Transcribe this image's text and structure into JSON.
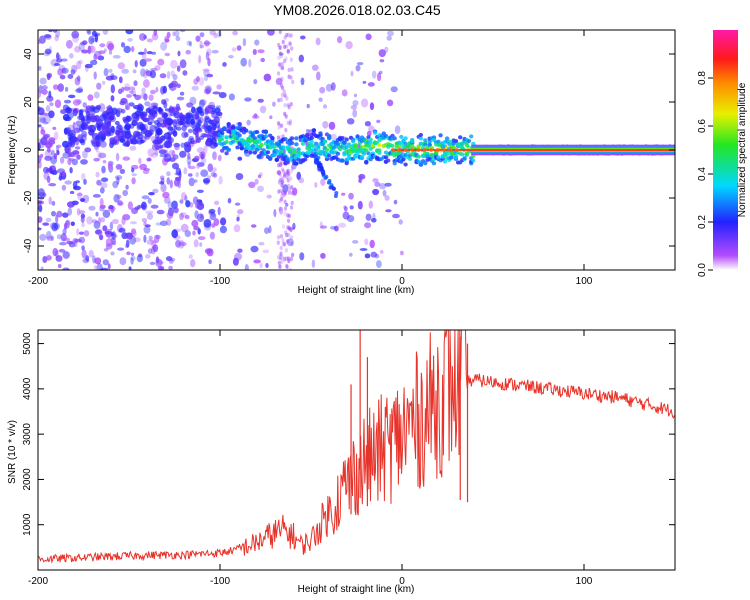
{
  "title": "YM08.2026.018.02.03.C45",
  "chart_data": [
    {
      "type": "heatmap",
      "title": "YM08.2026.018.02.03.C45",
      "xlabel": "Height of straight line (km)",
      "ylabel": "Frequency (Hz)",
      "xlim": [
        -200,
        150
      ],
      "ylim": [
        -50,
        50
      ],
      "xticks": [
        -200,
        -100,
        0,
        100
      ],
      "xtick_labels": [
        "-200",
        "-100",
        "0",
        "100"
      ],
      "yticks": [
        -40,
        -20,
        0,
        20,
        40
      ],
      "ytick_labels": [
        "-40",
        "-20",
        "0",
        "20",
        "40"
      ],
      "colorbar": {
        "label": "Normalized spectral amplitude",
        "range": [
          0,
          1
        ],
        "ticks": [
          0,
          0.2,
          0.4,
          0.6,
          0.8
        ],
        "tick_labels": [
          "0.0",
          "0.2",
          "0.4",
          "0.6",
          "0.8"
        ]
      },
      "ridge": {
        "x": [
          -100,
          -90,
          -80,
          -70,
          -60,
          -50,
          -40,
          -30,
          -20,
          -10,
          0,
          10,
          20,
          30,
          40,
          60,
          80,
          100,
          120,
          150
        ],
        "y": [
          4,
          5,
          3,
          1,
          -1,
          2,
          1,
          0,
          1,
          2,
          0,
          0,
          0,
          0,
          0,
          0,
          0,
          0,
          0,
          0
        ]
      }
    },
    {
      "type": "line",
      "xlabel": "Height of straight line (km)",
      "ylabel": "SNR (10 * v/v)",
      "xlim": [
        -200,
        150
      ],
      "ylim": [
        0,
        5300
      ],
      "xticks": [
        -200,
        -100,
        0,
        100
      ],
      "xtick_labels": [
        "-200",
        "-100",
        "0",
        "100"
      ],
      "yticks": [
        1000,
        2000,
        3000,
        4000,
        5000
      ],
      "ytick_labels": [
        "1000",
        "2000",
        "3000",
        "4000",
        "5000"
      ],
      "color": "#e8332a",
      "series": [
        {
          "name": "SNR",
          "x": [
            -200,
            -180,
            -160,
            -140,
            -120,
            -100,
            -90,
            -80,
            -75,
            -70,
            -65,
            -60,
            -55,
            -50,
            -45,
            -40,
            -35,
            -30,
            -25,
            -20,
            -15,
            -10,
            -5,
            0,
            5,
            10,
            15,
            20,
            25,
            30,
            35,
            40,
            50,
            60,
            80,
            100,
            120,
            140,
            150
          ],
          "y": [
            200,
            230,
            260,
            290,
            300,
            340,
            420,
            550,
            650,
            750,
            800,
            700,
            500,
            600,
            900,
            1200,
            1600,
            1900,
            2200,
            2400,
            2500,
            2700,
            2800,
            3000,
            3200,
            3350,
            3550,
            3800,
            4050,
            4200,
            4150,
            4200,
            4150,
            4100,
            4000,
            3900,
            3800,
            3600,
            3500
          ]
        }
      ],
      "spikes": [
        {
          "x": -23,
          "y": 5300
        },
        {
          "x": -19,
          "y": 4700
        },
        {
          "x": -28,
          "y": 4100
        },
        {
          "x": 32,
          "y": 5150
        },
        {
          "x": 36,
          "y": 5000
        }
      ]
    }
  ]
}
